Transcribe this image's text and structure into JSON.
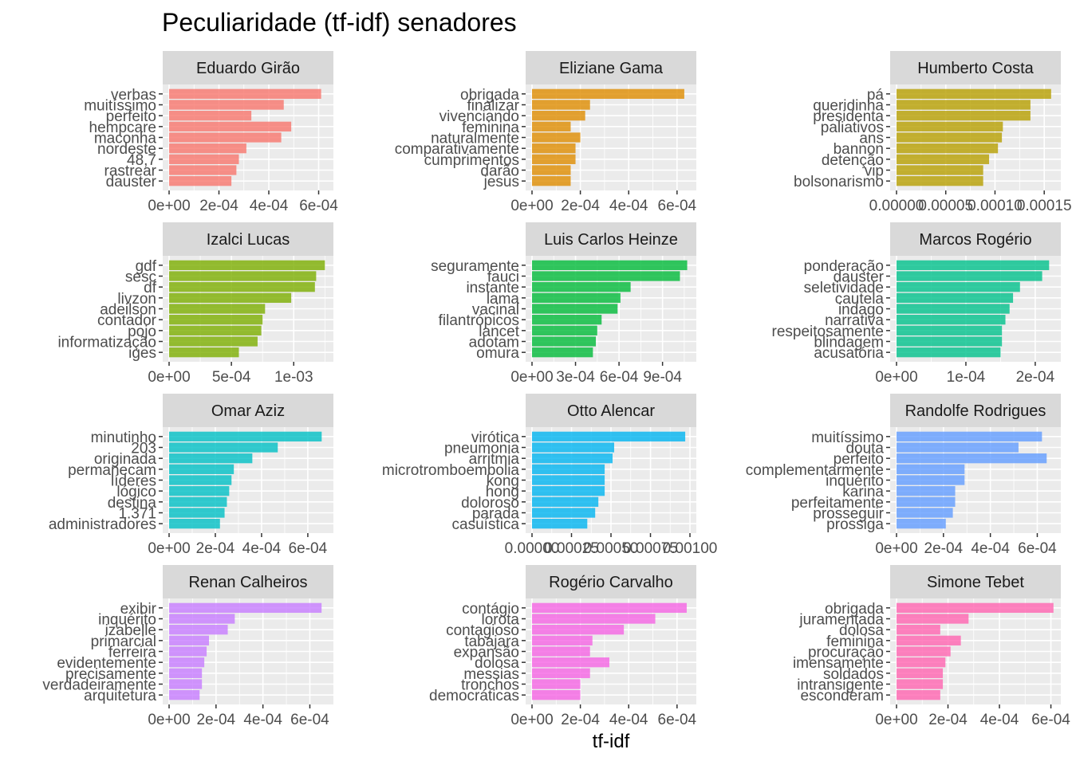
{
  "title": "Peculiaridade (tf-idf) senadores",
  "xlabel": "tf-idf",
  "chart_data": [
    {
      "type": "bar",
      "orientation": "horizontal",
      "title": "Eduardo Girão",
      "color": "#F8766D",
      "categories": [
        "verbas",
        "muitíssimo",
        "perfeito",
        "hempcare",
        "maconha",
        "nordeste",
        "48,7",
        "rastrear",
        "dauster"
      ],
      "values": [
        0.00061,
        0.00046,
        0.00033,
        0.00049,
        0.00045,
        0.00031,
        0.00028,
        0.00027,
        0.00025
      ],
      "xlim": [
        0,
        0.00064
      ],
      "ticks": [
        0,
        0.0002,
        0.0004,
        0.0006
      ],
      "tick_labels": [
        "0e+00",
        "2e-04",
        "4e-04",
        "6e-04"
      ]
    },
    {
      "type": "bar",
      "orientation": "horizontal",
      "title": "Eliziane Gama",
      "color": "#DE8C00",
      "categories": [
        "obrigada",
        "finalizar",
        "vivenciando",
        "feminina",
        "naturalmente",
        "comparativamente",
        "cumprimentos",
        "darão",
        "jesus"
      ],
      "values": [
        0.00063,
        0.00024,
        0.00022,
        0.00016,
        0.0002,
        0.00018,
        0.00018,
        0.00016,
        0.00016
      ],
      "xlim": [
        0,
        0.00066
      ],
      "ticks": [
        0,
        0.0002,
        0.0004,
        0.0006
      ],
      "tick_labels": [
        "0e+00",
        "2e-04",
        "4e-04",
        "6e-04"
      ]
    },
    {
      "type": "bar",
      "orientation": "horizontal",
      "title": "Humberto Costa",
      "color": "#B79F00",
      "categories": [
        "pá",
        "queridinha",
        "presidenta",
        "paliativos",
        "ans",
        "bannon",
        "detenção",
        "vip",
        "bolsonarismo"
      ],
      "values": [
        0.000157,
        0.000136,
        0.000136,
        0.000108,
        0.000107,
        0.000103,
        9.4e-05,
        8.8e-05,
        8.8e-05
      ],
      "xlim": [
        0,
        0.000162
      ],
      "ticks": [
        0,
        5e-05,
        0.0001,
        0.00015
      ],
      "tick_labels": [
        "0.00000",
        "0.00005",
        "0.00010",
        "0.00015"
      ]
    },
    {
      "type": "bar",
      "orientation": "horizontal",
      "title": "Izalci Lucas",
      "color": "#7CAE00",
      "categories": [
        "gdf",
        "sesc",
        "df",
        "livzon",
        "adeilson",
        "contador",
        "pojo",
        "informatização",
        "iges"
      ],
      "values": [
        0.00125,
        0.00118,
        0.00117,
        0.00098,
        0.00077,
        0.00075,
        0.00074,
        0.00071,
        0.00056
      ],
      "xlim": [
        0,
        0.00128
      ],
      "ticks": [
        0,
        0.0005,
        0.001
      ],
      "tick_labels": [
        "0e+00",
        "5e-04",
        "1e-03"
      ]
    },
    {
      "type": "bar",
      "orientation": "horizontal",
      "title": "Luis Carlos Heinze",
      "color": "#00BA38",
      "categories": [
        "seguramente",
        "fauci",
        "instante",
        "lama",
        "vacinal",
        "filantrópicos",
        "lancet",
        "adotam",
        "omura"
      ],
      "values": [
        0.00107,
        0.00102,
        0.00068,
        0.00061,
        0.00059,
        0.00048,
        0.00045,
        0.00044,
        0.00042
      ],
      "xlim": [
        0,
        0.0011
      ],
      "ticks": [
        0,
        0.0003,
        0.0006,
        0.0009
      ],
      "tick_labels": [
        "0e+00",
        "3e-04",
        "6e-04",
        "9e-04"
      ]
    },
    {
      "type": "bar",
      "orientation": "horizontal",
      "title": "Marcos Rogério",
      "color": "#00C08B",
      "categories": [
        "ponderação",
        "dauster",
        "seletividade",
        "cautela",
        "indago",
        "narrativa",
        "respeitosamente",
        "blindagem",
        "acusatória"
      ],
      "values": [
        0.00022,
        0.00021,
        0.000178,
        0.000168,
        0.000163,
        0.000157,
        0.000152,
        0.000152,
        0.00015
      ],
      "xlim": [
        0,
        0.00023
      ],
      "ticks": [
        0,
        0.0001,
        0.0002
      ],
      "tick_labels": [
        "0e+00",
        "1e-04",
        "2e-04"
      ]
    },
    {
      "type": "bar",
      "orientation": "horizontal",
      "title": "Omar Aziz",
      "color": "#00BFC4",
      "categories": [
        "minutinho",
        "203",
        "originada",
        "permanecam",
        "líderes",
        "lógico",
        "destina",
        "1.371",
        "administradores"
      ],
      "values": [
        0.00066,
        0.00047,
        0.00036,
        0.00028,
        0.00027,
        0.00026,
        0.00025,
        0.00024,
        0.00022
      ],
      "xlim": [
        0,
        0.00069
      ],
      "ticks": [
        0,
        0.0002,
        0.0004,
        0.0006
      ],
      "tick_labels": [
        "0e+00",
        "2e-04",
        "4e-04",
        "6e-04"
      ]
    },
    {
      "type": "bar",
      "orientation": "horizontal",
      "title": "Otto Alencar",
      "color": "#00B4F0",
      "categories": [
        "virótica",
        "pneumonia",
        "arritmia",
        "microtromboembolia",
        "kong",
        "hong",
        "doloroso",
        "parada",
        "casuística"
      ],
      "values": [
        0.00097,
        0.00052,
        0.00051,
        0.00046,
        0.00046,
        0.00046,
        0.00042,
        0.0004,
        0.00035
      ],
      "xlim": [
        0,
        0.00101
      ],
      "ticks": [
        0,
        0.00025,
        0.0005,
        0.00075,
        0.001
      ],
      "tick_labels": [
        "0.00000",
        "0.00025",
        "0.00050",
        "0.00075",
        "0.00100"
      ]
    },
    {
      "type": "bar",
      "orientation": "horizontal",
      "title": "Randolfe Rodrigues",
      "color": "#619CFF",
      "categories": [
        "muitíssimo",
        "douta",
        "perfeito",
        "complementarmente",
        "inquérito",
        "karina",
        "perfeitamente",
        "prosseguir",
        "prossiga"
      ],
      "values": [
        0.00062,
        0.00052,
        0.00064,
        0.00029,
        0.00029,
        0.00025,
        0.00025,
        0.00024,
        0.00021
      ],
      "xlim": [
        0,
        0.00068
      ],
      "ticks": [
        0,
        0.0002,
        0.0004,
        0.0006
      ],
      "tick_labels": [
        "0e+00",
        "2e-04",
        "4e-04",
        "6e-04"
      ]
    },
    {
      "type": "bar",
      "orientation": "horizontal",
      "title": "Renan Calheiros",
      "color": "#C77CFF",
      "categories": [
        "exibir",
        "inquérito",
        "izabelle",
        "primarcial",
        "ferreira",
        "evidentemente",
        "precisamente",
        "verdadeiramente",
        "arquitetura"
      ],
      "values": [
        0.00065,
        0.00028,
        0.00025,
        0.00017,
        0.00016,
        0.00015,
        0.00014,
        0.00014,
        0.00013
      ],
      "xlim": [
        0,
        0.00068
      ],
      "ticks": [
        0,
        0.0002,
        0.0004,
        0.0006
      ],
      "tick_labels": [
        "0e+00",
        "2e-04",
        "4e-04",
        "6e-04"
      ]
    },
    {
      "type": "bar",
      "orientation": "horizontal",
      "title": "Rogério Carvalho",
      "color": "#F564E3",
      "categories": [
        "contágio",
        "lorota",
        "contagioso",
        "tabajara",
        "expansão",
        "dolosa",
        "messias",
        "tronchos",
        "democráticas"
      ],
      "values": [
        0.00064,
        0.00051,
        0.00038,
        0.00025,
        0.00024,
        0.00032,
        0.00024,
        0.0002,
        0.0002
      ],
      "xlim": [
        0,
        0.00066
      ],
      "ticks": [
        0,
        0.0002,
        0.0004,
        0.0006
      ],
      "tick_labels": [
        "0e+00",
        "2e-04",
        "4e-04",
        "6e-04"
      ]
    },
    {
      "type": "bar",
      "orientation": "horizontal",
      "title": "Simone Tebet",
      "color": "#FF64B0",
      "categories": [
        "obrigada",
        "juramentada",
        "dolosa",
        "feminina",
        "procuração",
        "imensamente",
        "soldados",
        "intransigente",
        "esconderam"
      ],
      "values": [
        0.00061,
        0.00028,
        0.00017,
        0.00025,
        0.00021,
        0.00019,
        0.00018,
        0.00018,
        0.00017
      ],
      "xlim": [
        0,
        0.00062
      ],
      "ticks": [
        0,
        0.0002,
        0.0004,
        0.0006
      ],
      "tick_labels": [
        "0e+00",
        "2e-04",
        "4e-04",
        "6e-04"
      ]
    }
  ]
}
